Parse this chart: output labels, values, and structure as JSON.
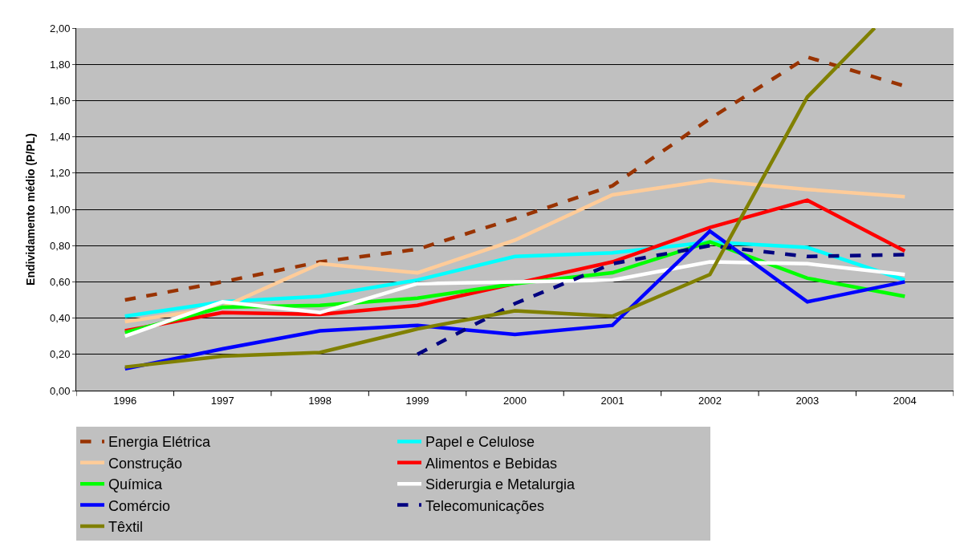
{
  "chart_data": {
    "type": "line",
    "ylabel": "Endividamento médio (P/PL)",
    "x": [
      1996,
      1997,
      1998,
      1999,
      2000,
      2001,
      2002,
      2003,
      2004
    ],
    "xlim": [
      1995.5,
      2004.5
    ],
    "xticks": [
      1996,
      1997,
      1998,
      1999,
      2000,
      2001,
      2002,
      2003,
      2004
    ],
    "ylim": [
      0,
      2
    ],
    "yticks": [
      {
        "value": 0,
        "label": "0,00"
      },
      {
        "value": 0.2,
        "label": "0,20"
      },
      {
        "value": 0.4,
        "label": "0,40"
      },
      {
        "value": 0.6,
        "label": "0,60"
      },
      {
        "value": 0.8,
        "label": "0,80"
      },
      {
        "value": 1,
        "label": "1,00"
      },
      {
        "value": 1.2,
        "label": "1,20"
      },
      {
        "value": 1.4,
        "label": "1,40"
      },
      {
        "value": 1.6,
        "label": "1,60"
      },
      {
        "value": 1.8,
        "label": "1,80"
      },
      {
        "value": 2,
        "label": "2,00"
      }
    ],
    "grid": "y",
    "legend": "bottom",
    "marker": "none",
    "series": [
      {
        "name": "Energia Elétrica",
        "color": "#993300",
        "line_style": "dashed",
        "values": [
          0.5,
          0.6,
          0.71,
          0.78,
          0.95,
          1.13,
          1.5,
          1.84,
          1.68
        ]
      },
      {
        "name": "Papel e Celulose",
        "color": "#00ffff",
        "line_style": "solid",
        "values": [
          0.41,
          0.49,
          0.52,
          0.61,
          0.74,
          0.76,
          0.82,
          0.79,
          0.61
        ]
      },
      {
        "name": "Construção",
        "color": "#ffcc99",
        "line_style": "solid",
        "values": [
          0.38,
          0.46,
          0.7,
          0.65,
          0.83,
          1.08,
          1.16,
          1.11,
          1.07
        ]
      },
      {
        "name": "Alimentos e Bebidas",
        "color": "#ff0000",
        "line_style": "solid",
        "values": [
          0.33,
          0.43,
          0.42,
          0.47,
          0.59,
          0.71,
          0.9,
          1.05,
          0.77
        ]
      },
      {
        "name": "Química",
        "color": "#00ff00",
        "line_style": "solid",
        "values": [
          0.32,
          0.46,
          0.47,
          0.51,
          0.59,
          0.65,
          0.82,
          0.62,
          0.52
        ]
      },
      {
        "name": "Siderurgia e Metalurgia",
        "color": "#ffffff",
        "line_style": "solid",
        "values": [
          0.3,
          0.49,
          0.43,
          0.59,
          0.6,
          0.61,
          0.71,
          0.7,
          0.64
        ]
      },
      {
        "name": "Comércio",
        "color": "#0000ff",
        "line_style": "solid",
        "values": [
          0.12,
          0.23,
          0.33,
          0.36,
          0.31,
          0.36,
          0.88,
          0.49,
          0.6
        ]
      },
      {
        "name": "Telecomunicações",
        "color": "#000080",
        "line_style": "dashed",
        "values": [
          null,
          null,
          null,
          0.2,
          0.48,
          0.7,
          0.8,
          0.74,
          0.75
        ]
      },
      {
        "name": "Têxtil",
        "color": "#808000",
        "line_style": "solid",
        "x": [
          1996,
          1997,
          1998,
          1999,
          2000,
          2001,
          2002,
          2003,
          2003.69
        ],
        "values": [
          0.13,
          0.19,
          0.21,
          0.34,
          0.44,
          0.41,
          0.64,
          1.62,
          2.0
        ]
      }
    ]
  }
}
